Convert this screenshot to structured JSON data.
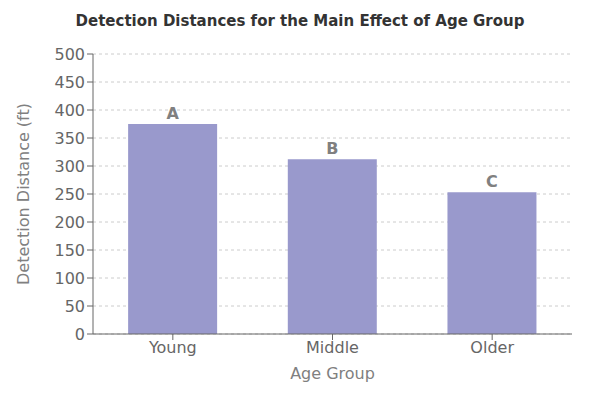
{
  "chart_data": {
    "type": "bar",
    "title": "Detection Distances for the Main Effect of Age Group",
    "xlabel": "Age Group",
    "ylabel": "Detection Distance (ft)",
    "categories": [
      "Young",
      "Middle",
      "Older"
    ],
    "values": [
      375,
      312,
      253
    ],
    "annotations": [
      "A",
      "B",
      "C"
    ],
    "color": "#9999cc",
    "ylim": [
      0,
      500
    ],
    "yticks": [
      0,
      50,
      100,
      150,
      200,
      250,
      300,
      350,
      400,
      450,
      500
    ],
    "grid": true
  }
}
